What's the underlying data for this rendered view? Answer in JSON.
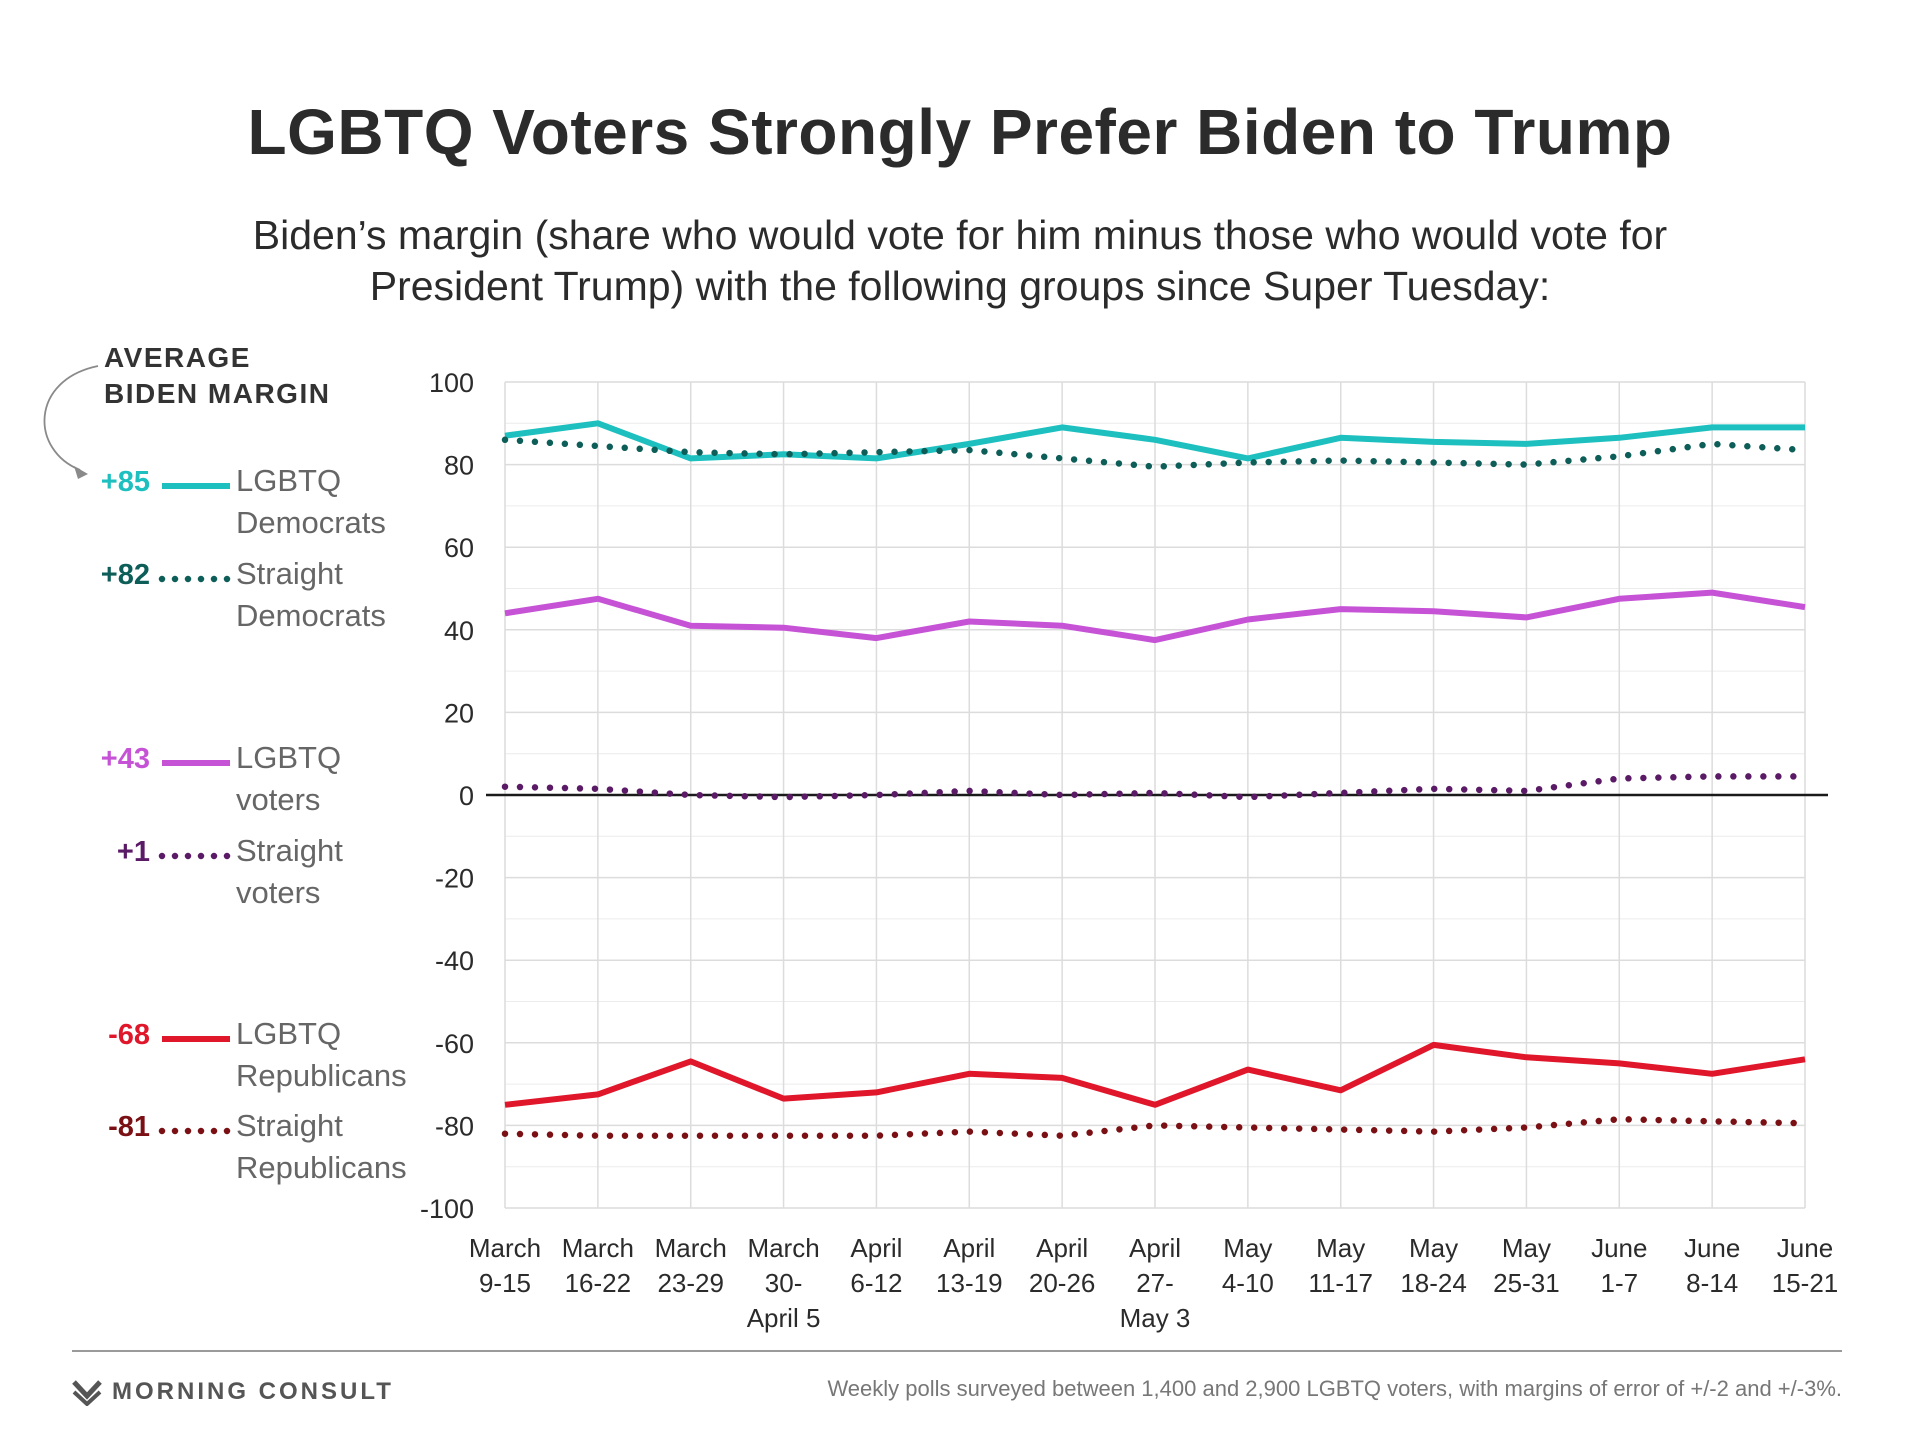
{
  "title": "LGBTQ Voters Strongly Prefer Biden to Trump",
  "subtitle": "Biden’s margin (share who would vote for him minus those who would vote for President Trump) with the following groups since Super Tuesday:",
  "legend_heading_line1": "AVERAGE",
  "legend_heading_line2": "BIDEN MARGIN",
  "source_note": "Weekly polls surveyed between 1,400 and 2,900 LGBTQ voters, with margins of error of +/-2 and +/-3%.",
  "logo_text": "MORNING CONSULT",
  "chart_data": {
    "type": "line",
    "ylim": [
      -100,
      100
    ],
    "yticks": [
      100,
      80,
      60,
      40,
      20,
      0,
      -20,
      -40,
      -60,
      -80,
      -100
    ],
    "grid": true,
    "categories": [
      [
        "March",
        "9-15"
      ],
      [
        "March",
        "16-22"
      ],
      [
        "March",
        "23-29"
      ],
      [
        "March",
        "30-",
        "April 5"
      ],
      [
        "April",
        "6-12"
      ],
      [
        "April",
        "13-19"
      ],
      [
        "April",
        "20-26"
      ],
      [
        "April",
        "27-",
        "May 3"
      ],
      [
        "May",
        "4-10"
      ],
      [
        "May",
        "11-17"
      ],
      [
        "May",
        "18-24"
      ],
      [
        "May",
        "25-31"
      ],
      [
        "June",
        "1-7"
      ],
      [
        "June",
        "8-14"
      ],
      [
        "June",
        "15-21"
      ]
    ],
    "series": [
      {
        "name_line1": "LGBTQ",
        "name_line2": "Democrats",
        "average": "+85",
        "style": "solid",
        "color": "#1dbfbf",
        "label_color": "#1dbfbf",
        "values": [
          87,
          90,
          81.5,
          82.5,
          81.5,
          85,
          89,
          86,
          81.5,
          86.5,
          85.5,
          85,
          86.5,
          89,
          89
        ]
      },
      {
        "name_line1": "Straight",
        "name_line2": "Democrats",
        "average": "+82",
        "style": "dotted",
        "color": "#0d5e58",
        "label_color": "#0d5e58",
        "values": [
          86,
          84.5,
          83,
          82.5,
          83,
          83.5,
          81.5,
          79.5,
          80.5,
          81,
          80.5,
          80,
          82,
          85,
          83.5
        ]
      },
      {
        "name_line1": "LGBTQ",
        "name_line2": "voters",
        "average": "+43",
        "style": "solid",
        "color": "#c653d6",
        "label_color": "#c653d6",
        "values": [
          44,
          47.5,
          41,
          40.5,
          38,
          42,
          41,
          37.5,
          42.5,
          45,
          44.5,
          43,
          47.5,
          49,
          45.5
        ]
      },
      {
        "name_line1": "Straight",
        "name_line2": "voters",
        "average": "+1",
        "style": "dotted",
        "color": "#5b1a66",
        "label_color": "#5b1a66",
        "values": [
          2,
          1.5,
          0,
          -0.5,
          0,
          1,
          0,
          0.5,
          -0.5,
          0.5,
          1.5,
          1,
          4,
          4.5,
          4.5
        ]
      },
      {
        "name_line1": "LGBTQ",
        "name_line2": "Republicans",
        "average": "-68",
        "style": "solid",
        "color": "#e0162b",
        "label_color": "#e0162b",
        "values": [
          -75,
          -72.5,
          -64.5,
          -73.5,
          -72,
          -67.5,
          -68.5,
          -75,
          -66.5,
          -71.5,
          -60.5,
          -63.5,
          -65,
          -67.5,
          -64
        ]
      },
      {
        "name_line1": "Straight",
        "name_line2": "Republicans",
        "average": "-81",
        "style": "dotted",
        "color": "#7a0f14",
        "label_color": "#7a0f14",
        "values": [
          -82,
          -82.5,
          -82.5,
          -82.5,
          -82.5,
          -81.5,
          -82.5,
          -80,
          -80.5,
          -81,
          -81.5,
          -80.5,
          -78.5,
          -79,
          -79.5
        ]
      }
    ]
  }
}
